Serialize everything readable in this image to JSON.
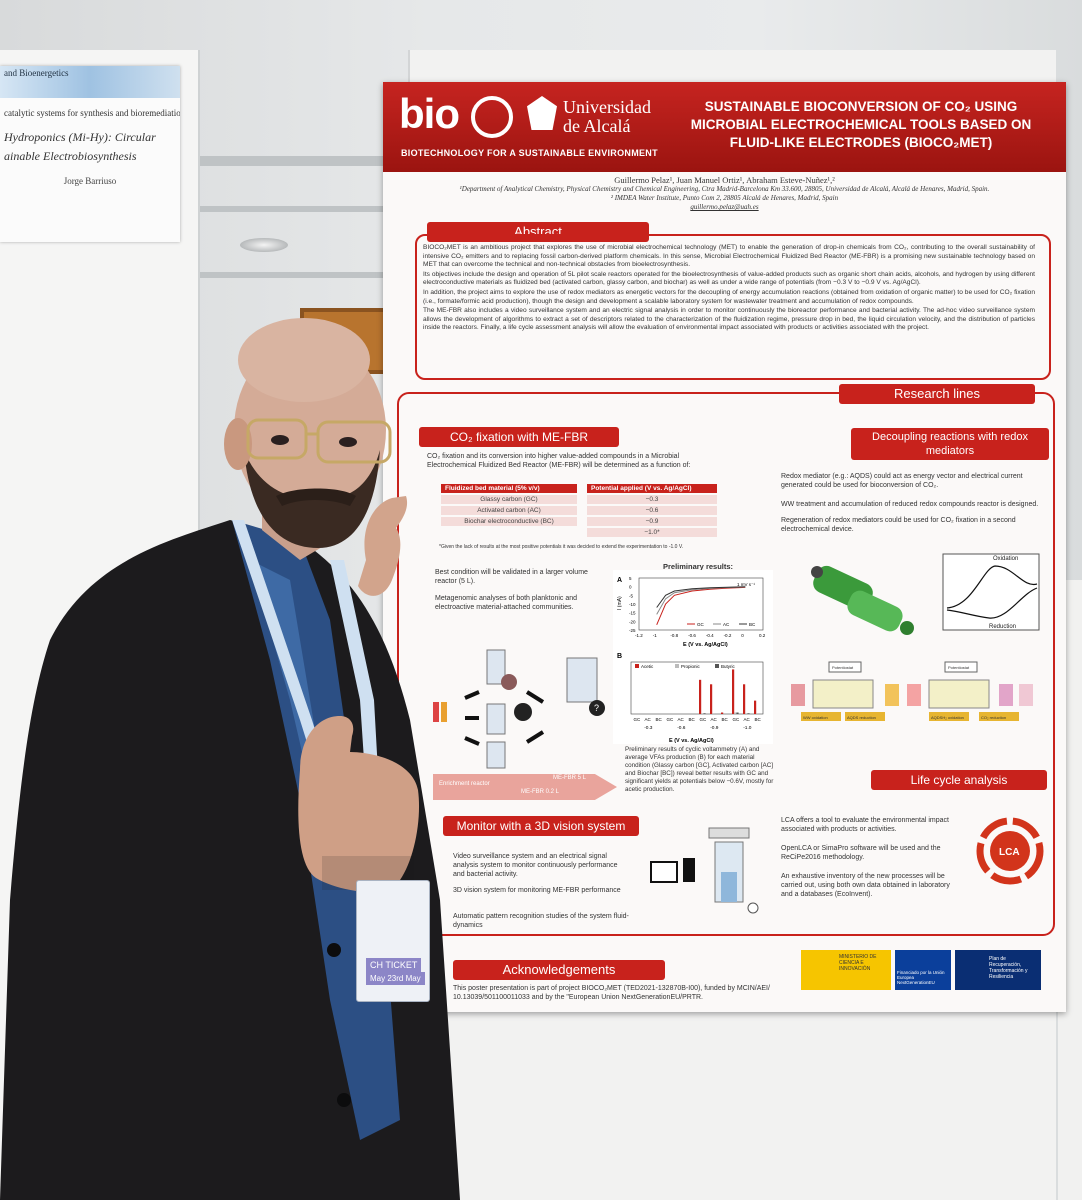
{
  "left_poster": {
    "line1": "and Bioenergetics",
    "line2": "catalytic systems for synthesis and bioremediation",
    "title_line1": "Hydroponics (Mi-Hy): Circular",
    "title_line2": "ainable Electrobiosynthesis",
    "author": "Jorge Barriuso"
  },
  "poster": {
    "logo_text": "bio",
    "logo_tagline": "BIOTECHNOLOGY FOR A SUSTAINABLE ENVIRONMENT",
    "university_line1": "Universidad",
    "university_line2": "de Alcalá",
    "title": "SUSTAINABLE BIOCONVERSION OF CO₂ USING MICROBIAL ELECTROCHEMICAL TOOLS BASED ON FLUID-LIKE ELECTRODES (BIOCO₂MET)",
    "authors": "Guillermo Pelaz¹, Juan Manuel Ortiz¹, Abraham Esteve-Nuñez¹,²",
    "affiliation1": "¹Department of Analytical Chemistry, Physical Chemistry and Chemical Engineering, Ctra Madrid-Barcelona Km 33.600, 28805, Universidad de Alcalá, Alcalá de Henares, Madrid, Spain.",
    "affiliation2": "² IMDEA Water Institute, Punto Com 2, 28805 Alcalá de Henares, Madrid, Spain",
    "email": "guillermo.pelaz@uah.es",
    "abstract_heading": "Abstract",
    "abstract": [
      "BIOCO₂MET is an ambitious project that explores the use of microbial electrochemical technology (MET) to enable the generation of drop-in chemicals from CO₂, contributing to the overall sustainability of intensive CO₂ emitters and to replacing fossil carbon-derived platform chemicals. In this sense, Microbial Electrochemical Fluidized Bed Reactor (ME-FBR) is a promising new sustainable technology based on MET that can overcome the technical and non-technical obstacles from bioelectrosynthesis.",
      "Its objectives include the design and operation of 5L pilot scale reactors operated for the bioelectrosynthesis of value-added products such as organic short chain acids, alcohols, and hydrogen by using different electroconductive materials as fluidized bed (activated carbon, glassy carbon, and biochar) as well as under a wide range of potentials (from −0.3 V to −0.9 V vs. Ag/AgCl).",
      "In addition, the project aims to explore the use of redox mediators as energetic vectors for the decoupling of energy accumulation reactions (obtained from oxidation of organic matter) to be used for CO₂ fixation (i.e., formate/formic acid production), though the design and development a scalable laboratory system for wastewater treatment and accumulation of redox compounds.",
      "The ME-FBR also includes a video surveillance system and an electric signal analysis in order to monitor continuously the bioreactor performance and bacterial activity. The ad-hoc video surveillance system allows the development of algorithms to extract a set of descriptors related to the characterization of the fluidization regime, pressure drop in bed, the liquid circulation velocity, and the distribution of particles inside the reactors. Finally, a life cycle assessment analysis will allow the evaluation of environmental impact associated with products or activities associated with the project."
    ],
    "research_heading": "Research lines",
    "co2_heading": "CO₂ fixation with ME-FBR",
    "co2_text": "CO₂ fixation and its conversion into higher value-added compounds in a Microbial Electrochemical Fluidized Bed Reactor (ME-FBR) will be determined as a function of:",
    "table_head_material": "Fluidized bed material (5% v/v)",
    "table_head_potential": "Potential applied (V vs. Ag/AgCl)",
    "materials": [
      "Glassy carbon (GC)",
      "Activated carbon (AC)",
      "Biochar electroconductive (BC)"
    ],
    "potentials": [
      "−0.3",
      "−0.6",
      "−0.9",
      "−1.0*"
    ],
    "table_note": "*Given the lack of results at the most positive potentials it was decided to extend the experimentation to -1.0 V.",
    "best_condition": "Best condition will be validated in a larger volume reactor (5 L).",
    "metagenomic": "Metagenomic analyses of both planktonic and electroactive material-attached communities.",
    "enrichment_label": "Enrichment reactor",
    "mefbr5": "ME-FBR 5 L",
    "mefbr02": "ME-FBR 0.2 L",
    "prelim_title": "Preliminary results:",
    "chart_caption": "Preliminary results of cyclic voltammetry (A) and average VFAs production (B) for each material condition (Glassy carbon [GC], Activated carbon [AC] and Biochar [BC]) reveal better results with GC and significant yields at potentials below −0.6V, mostly for acetic production.",
    "decoupling_heading": "Decoupling reactions with redox mediators",
    "decoupling_1": "Redox mediator (e.g.: AQDS) could act as energy vector and electrical current generated could be used for bioconversion of CO₂.",
    "decoupling_2": "WW treatment and accumulation of reduced redox compounds reactor is designed.",
    "decoupling_3": "Regeneration of redox mediators could be used for CO₂ fixation in a second electrochemical device.",
    "oxidation_label": "Oxidation",
    "reduction_label": "Reduction",
    "ww_oxidation": "WW oxidation",
    "aqds_reduction": "AQDS reduction",
    "aqdsh2_oxidation": "AQDSH₂ oxidation",
    "co2_reduction": "CO₂ reduction",
    "potentiostat": "Potentiostat",
    "lca_heading": "Life cycle analysis",
    "lca_1": "LCA offers a tool to evaluate the environmental impact associated with products or activities.",
    "lca_2": "OpenLCA or SimaPro software will be used and the ReCiPe2016 methodology.",
    "lca_3": "An exhaustive inventory of the new processes will be carried out, using both own data obtained in laboratory and a databases (EcoInvent).",
    "lca_badge": "LCA",
    "monitor_heading": "Monitor with a 3D vision system",
    "monitor_1": "Video surveillance system and an electrical signal analysis system to monitor continuously performance and bacterial activity.",
    "monitor_2": "3D vision system for monitoring ME-FBR performance",
    "monitor_3": "Automatic pattern recognition studies of the system fluid-dynamics",
    "ack_heading": "Acknowledgements",
    "ack_text": "This poster presentation is part of project BIOCO₂MET (TED2021-132870B-I00), funded by MCIN/AEI/ 10.13039/501100011033 and by the \"European Union NextGenerationEU/PRTR.",
    "funder_ministry": "MINISTERIO DE CIENCIA E INNOVACIÓN",
    "funder_eu": "Financiado por la Unión Europea NextGenerationEU",
    "funder_prtr": "Plan de Recuperación, Transformación y Resiliencia"
  },
  "badge": {
    "ticket": "CH TICKET",
    "date": "May 23rd May"
  },
  "chart_data": [
    {
      "type": "line",
      "label": "A",
      "xlabel": "E (V vs. Ag/AgCl)",
      "ylabel": "I (mA)",
      "xlim": [
        -1.2,
        0.2
      ],
      "ylim": [
        -25,
        5
      ],
      "xticks": [
        "-1.2",
        "-1",
        "-0.8",
        "-0.6",
        "-0.4",
        "-0.2",
        "0",
        "0.2"
      ],
      "yticks": [
        "5",
        "0",
        "-5",
        "-10",
        "-15",
        "-20",
        "-25"
      ],
      "annotation": "1 mV s⁻¹",
      "series": [
        {
          "name": "GC",
          "x": [
            -1.0,
            -0.9,
            -0.8,
            -0.6,
            -0.4,
            -0.2,
            0.0
          ],
          "y": [
            -22,
            -10,
            -5,
            -2.5,
            -1.5,
            -0.8,
            -0.4
          ]
        },
        {
          "name": "AC",
          "x": [
            -1.0,
            -0.9,
            -0.8,
            -0.6,
            -0.4,
            -0.2,
            0.0
          ],
          "y": [
            -16,
            -7,
            -3.5,
            -1.8,
            -1.0,
            -0.5,
            -0.2
          ]
        },
        {
          "name": "BC",
          "x": [
            -1.0,
            -0.9,
            -0.8,
            -0.6,
            -0.4,
            -0.2,
            0.0
          ],
          "y": [
            -12,
            -5,
            -2.5,
            -1.2,
            -0.6,
            -0.3,
            -0.1
          ]
        }
      ]
    },
    {
      "type": "bar",
      "label": "B",
      "xlabel": "E (V vs. Ag/AgCl)",
      "ylim": [
        0,
        3.5
      ],
      "groups": [
        "-0.3",
        "-0.6",
        "-0.9",
        "-1.0"
      ],
      "categories": [
        "GC",
        "AC",
        "BC",
        "GC",
        "AC",
        "BC",
        "GC",
        "AC",
        "BC",
        "GC",
        "AC",
        "BC"
      ],
      "series": [
        {
          "name": "Acetic",
          "values": [
            0,
            0,
            0,
            0,
            0,
            0,
            2.3,
            2.0,
            0.1,
            3.0,
            2.0,
            0.9
          ]
        },
        {
          "name": "Propionic",
          "values": [
            0,
            0,
            0,
            0,
            0,
            0,
            0.05,
            0.05,
            0,
            0.1,
            0.05,
            0.05
          ]
        },
        {
          "name": "Butyric",
          "values": [
            0,
            0,
            0,
            0,
            0,
            0,
            0.05,
            0,
            0,
            0.1,
            0.05,
            0
          ]
        }
      ]
    }
  ],
  "colors": {
    "poster_red": "#c8221c",
    "suit": "#1c1b1d",
    "shirt": "#2c4f84"
  }
}
